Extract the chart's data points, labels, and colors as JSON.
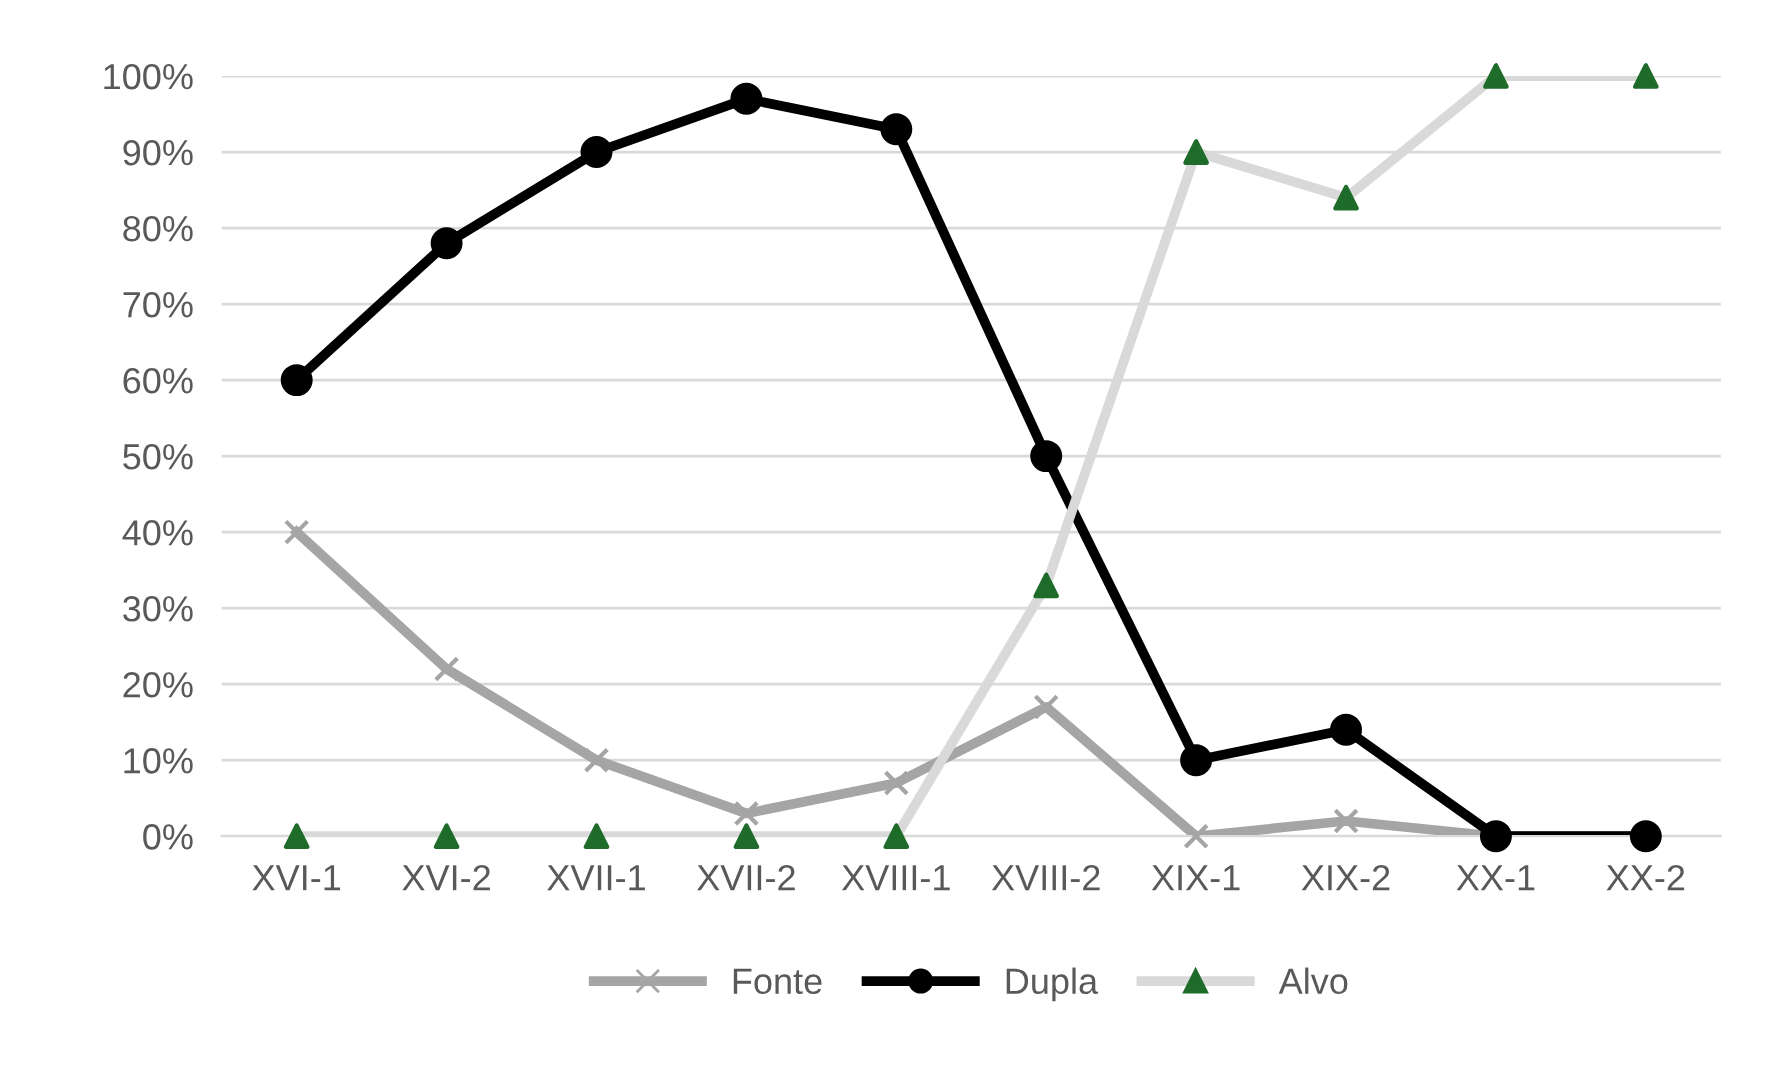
{
  "chart_data": {
    "type": "line",
    "categories": [
      "XVI-1",
      "XVI-2",
      "XVII-1",
      "XVII-2",
      "XVIII-1",
      "XVIII-2",
      "XIX-1",
      "XIX-2",
      "XX-1",
      "XX-2"
    ],
    "series": [
      {
        "name": "Fonte",
        "color": "#a5a5a5",
        "marker": "cross",
        "values": [
          40,
          22,
          10,
          3,
          7,
          17,
          0,
          2,
          0,
          0
        ]
      },
      {
        "name": "Dupla",
        "color": "#000000",
        "marker": "circle",
        "values": [
          60,
          78,
          90,
          97,
          93,
          50,
          10,
          14,
          0,
          0
        ]
      },
      {
        "name": "Alvo",
        "color": "#d9d9d9",
        "marker": "triangle",
        "colors": [
          "#1e6b2a",
          "#1e6b2a",
          "#1e6b2a",
          "#1e6b2a",
          "#1e6b2a",
          "#1e6b2a",
          "#1e6b2a",
          "#1e6b2a",
          "#1e6b2a",
          "#1e6b2a"
        ],
        "values": [
          0,
          0,
          0,
          0,
          0,
          33,
          90,
          84,
          100,
          100
        ]
      }
    ],
    "ylim": [
      0,
      100
    ],
    "yticks": [
      {
        "value": 0,
        "label": "0%"
      },
      {
        "value": 10,
        "label": "10%"
      },
      {
        "value": 20,
        "label": "20%"
      },
      {
        "value": 30,
        "label": "30%"
      },
      {
        "value": 40,
        "label": "40%"
      },
      {
        "value": 50,
        "label": "50%"
      },
      {
        "value": 60,
        "label": "60%"
      },
      {
        "value": 70,
        "label": "70%"
      },
      {
        "value": 80,
        "label": "80%"
      },
      {
        "value": 90,
        "label": "90%"
      },
      {
        "value": 100,
        "label": "100%"
      }
    ],
    "grid": "y",
    "legend": "bottom",
    "line_style": "solid"
  }
}
